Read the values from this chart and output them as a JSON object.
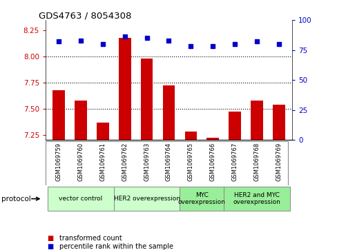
{
  "title": "GDS4763 / 8054308",
  "samples": [
    "GSM1069759",
    "GSM1069760",
    "GSM1069761",
    "GSM1069762",
    "GSM1069763",
    "GSM1069764",
    "GSM1069765",
    "GSM1069766",
    "GSM1069767",
    "GSM1069768",
    "GSM1069769"
  ],
  "bar_values": [
    7.68,
    7.58,
    7.37,
    8.18,
    7.98,
    7.72,
    7.28,
    7.22,
    7.47,
    7.58,
    7.54
  ],
  "percentile_values": [
    82,
    83,
    80,
    86,
    85,
    83,
    78,
    78,
    80,
    82,
    80
  ],
  "ylim_left": [
    7.2,
    8.35
  ],
  "ylim_right": [
    0,
    100
  ],
  "yticks_left": [
    7.25,
    7.5,
    7.75,
    8.0,
    8.25
  ],
  "yticks_right": [
    0,
    25,
    50,
    75,
    100
  ],
  "hlines": [
    8.0,
    7.75,
    7.5
  ],
  "bar_color": "#cc0000",
  "dot_color": "#0000cc",
  "label_color_bar": "#cc0000",
  "label_color_dot": "#0000cc",
  "protocol_groups": [
    {
      "label": "vector control",
      "start": 0,
      "end": 2,
      "color": "#ccffcc"
    },
    {
      "label": "HER2 overexpression",
      "start": 3,
      "end": 5,
      "color": "#ccffcc"
    },
    {
      "label": "MYC\noverexpression",
      "start": 6,
      "end": 7,
      "color": "#99ee99"
    },
    {
      "label": "HER2 and MYC\noverexpression",
      "start": 8,
      "end": 10,
      "color": "#99ee99"
    }
  ],
  "legend_bar_label": "transformed count",
  "legend_dot_label": "percentile rank within the sample",
  "protocol_label": "protocol",
  "background_color": "#ffffff",
  "tick_bg_color": "#d0d0d0",
  "border_color": "#888888"
}
